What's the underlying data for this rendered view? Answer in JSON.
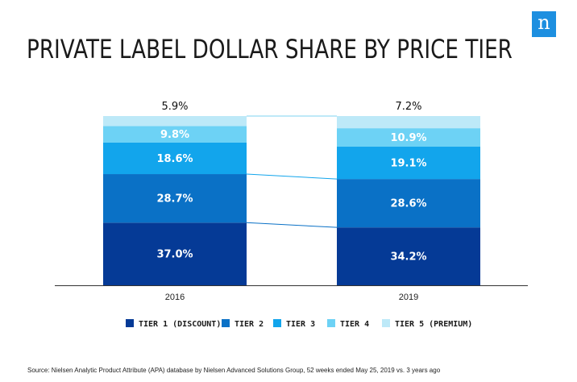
{
  "slide": {
    "logo_glyph": "n",
    "title": "PRIVATE LABEL DOLLAR SHARE BY PRICE TIER",
    "source": "Source: Nielsen Analytic Product Attribute (APA) database by Nielsen Advanced Solutions Group, 52 weeks ended May 25, 2019 vs. 3 years ago"
  },
  "chart_data": {
    "type": "bar",
    "stacked": true,
    "title": "PRIVATE LABEL DOLLAR SHARE BY PRICE TIER",
    "categories": [
      "2016",
      "2019"
    ],
    "series": [
      {
        "name": "TIER 1 (DISCOUNT)",
        "color": "#053a96",
        "values": [
          37.0,
          34.2
        ],
        "labels": [
          "37.0%",
          "34.2%"
        ]
      },
      {
        "name": "TIER 2",
        "color": "#0a71c6",
        "values": [
          28.7,
          28.6
        ],
        "labels": [
          "28.7%",
          "28.6%"
        ]
      },
      {
        "name": "TIER 3",
        "color": "#12a5ec",
        "values": [
          18.6,
          19.1
        ],
        "labels": [
          "18.6%",
          "19.1%"
        ]
      },
      {
        "name": "TIER 4",
        "color": "#6dd2f5",
        "values": [
          9.8,
          10.9
        ],
        "labels": [
          "9.8%",
          "10.9%"
        ]
      },
      {
        "name": "TIER 5 (PREMIUM)",
        "color": "#bde9f8",
        "values": [
          5.9,
          7.2
        ],
        "labels": [
          "5.9%",
          "7.2%"
        ]
      }
    ],
    "ylim": [
      0,
      100
    ],
    "legend_position": "bottom"
  }
}
